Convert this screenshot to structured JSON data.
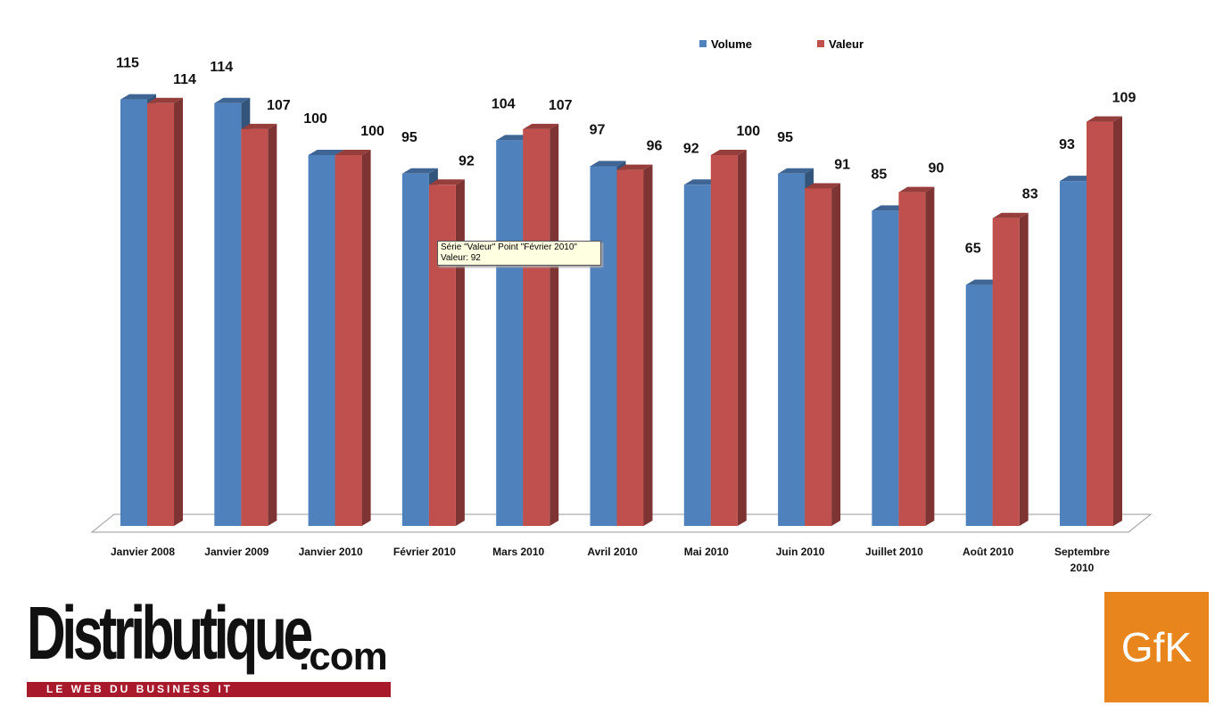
{
  "chart_data": {
    "type": "bar3d",
    "categories": [
      "Janvier 2008",
      "Janvier 2009",
      "Janvier 2010",
      "Février 2010",
      "Mars 2010",
      "Avril 2010",
      "Mai 2010",
      "Juin 2010",
      "Juillet 2010",
      "Août 2010",
      "Septembre 2010"
    ],
    "series": [
      {
        "name": "Volume",
        "color": "#4f81bd",
        "values": [
          115,
          114,
          100,
          95,
          104,
          97,
          92,
          95,
          85,
          65,
          93
        ]
      },
      {
        "name": "Valeur",
        "color": "#c0504d",
        "values": [
          114,
          107,
          100,
          92,
          107,
          96,
          100,
          91,
          90,
          83,
          109
        ]
      }
    ],
    "tooltip": [
      "Série \"Valeur\" Point \"Février 2010\"",
      "Valeur: 92"
    ]
  },
  "logos": {
    "distributique": "Distributique",
    "domain": ".com",
    "tagline": "LE WEB DU BUSINESS IT",
    "gfk": "GfK"
  }
}
